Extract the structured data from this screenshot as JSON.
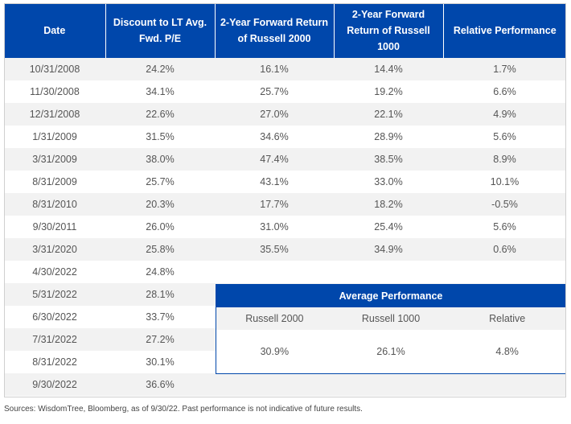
{
  "headers": [
    "Date",
    "Discount to LT Avg. Fwd. P/E",
    "2-Year Forward Return of Russell 2000",
    "2-Year Forward Return of Russell 1000",
    "Relative Performance"
  ],
  "rows": [
    {
      "date": "10/31/2008",
      "discount": "24.2%",
      "r2000": "16.1%",
      "r1000": "14.4%",
      "rel": "1.7%",
      "sign": "pos"
    },
    {
      "date": "11/30/2008",
      "discount": "34.1%",
      "r2000": "25.7%",
      "r1000": "19.2%",
      "rel": "6.6%",
      "sign": "pos"
    },
    {
      "date": "12/31/2008",
      "discount": "22.6%",
      "r2000": "27.0%",
      "r1000": "22.1%",
      "rel": "4.9%",
      "sign": "pos"
    },
    {
      "date": "1/31/2009",
      "discount": "31.5%",
      "r2000": "34.6%",
      "r1000": "28.9%",
      "rel": "5.6%",
      "sign": "pos"
    },
    {
      "date": "3/31/2009",
      "discount": "38.0%",
      "r2000": "47.4%",
      "r1000": "38.5%",
      "rel": "8.9%",
      "sign": "pos"
    },
    {
      "date": "8/31/2009",
      "discount": "25.7%",
      "r2000": "43.1%",
      "r1000": "33.0%",
      "rel": "10.1%",
      "sign": "pos"
    },
    {
      "date": "8/31/2010",
      "discount": "20.3%",
      "r2000": "17.7%",
      "r1000": "18.2%",
      "rel": "-0.5%",
      "sign": "neg"
    },
    {
      "date": "9/30/2011",
      "discount": "26.0%",
      "r2000": "31.0%",
      "r1000": "25.4%",
      "rel": "5.6%",
      "sign": "pos"
    },
    {
      "date": "3/31/2020",
      "discount": "25.8%",
      "r2000": "35.5%",
      "r1000": "34.9%",
      "rel": "0.6%",
      "sign": "pos"
    },
    {
      "date": "4/30/2022",
      "discount": "24.8%",
      "r2000": "",
      "r1000": "",
      "rel": "",
      "sign": ""
    },
    {
      "date": "5/31/2022",
      "discount": "28.1%",
      "r2000": "",
      "r1000": "",
      "rel": "",
      "sign": ""
    },
    {
      "date": "6/30/2022",
      "discount": "33.7%",
      "r2000": "",
      "r1000": "",
      "rel": "",
      "sign": ""
    },
    {
      "date": "7/31/2022",
      "discount": "27.2%",
      "r2000": "",
      "r1000": "",
      "rel": "",
      "sign": ""
    },
    {
      "date": "8/31/2022",
      "discount": "30.1%",
      "r2000": "",
      "r1000": "",
      "rel": "",
      "sign": ""
    },
    {
      "date": "9/30/2022",
      "discount": "36.6%",
      "r2000": "",
      "r1000": "",
      "rel": "",
      "sign": ""
    }
  ],
  "average": {
    "title": "Average Performance",
    "labels": [
      "Russell 2000",
      "Russell 1000",
      "Relative"
    ],
    "values": [
      "30.9%",
      "26.1%",
      "4.8%"
    ]
  },
  "source": "Sources: WisdomTree, Bloomberg, as of 9/30/22. Past performance is not indicative of future results.",
  "colors": {
    "header": "#0047ab",
    "positive": "#1fa34a",
    "negative": "#a0182c",
    "stripe": "#f2f2f2"
  }
}
